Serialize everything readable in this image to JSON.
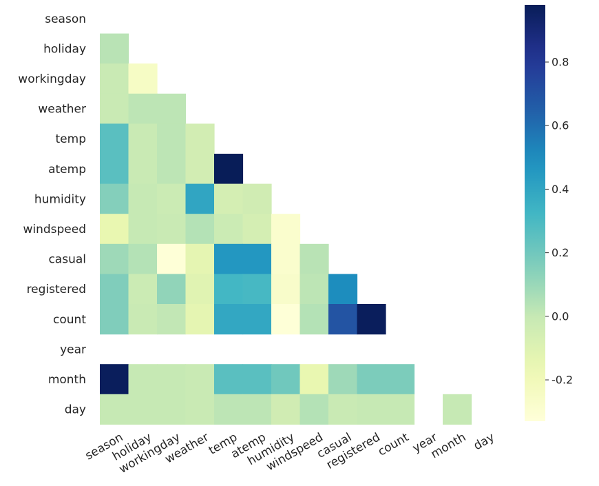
{
  "chart_data": {
    "type": "heatmap",
    "title": "",
    "variables": [
      "season",
      "holiday",
      "workingday",
      "weather",
      "temp",
      "atemp",
      "humidity",
      "windspeed",
      "casual",
      "registered",
      "count",
      "year",
      "month",
      "day"
    ],
    "mask": "upper-triangle",
    "matrix": [
      [
        null,
        null,
        null,
        null,
        null,
        null,
        null,
        null,
        null,
        null,
        null,
        null,
        null,
        null
      ],
      [
        0.03,
        null,
        null,
        null,
        null,
        null,
        null,
        null,
        null,
        null,
        null,
        null,
        null,
        null
      ],
      [
        -0.01,
        -0.25,
        null,
        null,
        null,
        null,
        null,
        null,
        null,
        null,
        null,
        null,
        null,
        null
      ],
      [
        -0.01,
        0.02,
        0.02,
        null,
        null,
        null,
        null,
        null,
        null,
        null,
        null,
        null,
        null,
        null
      ],
      [
        0.26,
        -0.01,
        0.02,
        -0.05,
        null,
        null,
        null,
        null,
        null,
        null,
        null,
        null,
        null,
        null
      ],
      [
        0.26,
        -0.01,
        0.02,
        -0.05,
        0.98,
        null,
        null,
        null,
        null,
        null,
        null,
        null,
        null,
        null
      ],
      [
        0.15,
        -0.0,
        -0.02,
        0.4,
        -0.06,
        -0.04,
        null,
        null,
        null,
        null,
        null,
        null,
        null,
        null
      ],
      [
        -0.15,
        0.0,
        -0.01,
        0.04,
        -0.02,
        -0.06,
        -0.28,
        null,
        null,
        null,
        null,
        null,
        null,
        null
      ],
      [
        0.09,
        0.04,
        -0.32,
        -0.13,
        0.46,
        0.46,
        -0.28,
        0.03,
        null,
        null,
        null,
        null,
        null,
        null
      ],
      [
        0.16,
        -0.02,
        0.12,
        -0.11,
        0.32,
        0.31,
        -0.27,
        0.02,
        0.5,
        null,
        null,
        null,
        null,
        null
      ],
      [
        0.16,
        -0.01,
        0.01,
        -0.13,
        0.39,
        0.39,
        -0.32,
        0.04,
        0.69,
        0.97,
        null,
        null,
        null,
        null
      ],
      [
        null,
        null,
        null,
        null,
        null,
        null,
        null,
        null,
        null,
        null,
        null,
        null,
        null,
        null
      ],
      [
        0.97,
        0.0,
        -0.0,
        -0.01,
        0.26,
        0.26,
        0.2,
        -0.15,
        0.09,
        0.17,
        0.17,
        null,
        null,
        null
      ],
      [
        -0.0,
        -0.0,
        -0.0,
        -0.01,
        0.02,
        0.02,
        -0.04,
        0.04,
        -0.01,
        0.0,
        0.0,
        null,
        -0.0,
        null
      ]
    ],
    "colormap": "YlGnBu",
    "vmin": -0.33,
    "vmax": 0.98,
    "colorbar_ticks": [
      0.8,
      0.6,
      0.4,
      0.2,
      0.0,
      -0.2
    ],
    "colorbar_tick_labels": [
      "0.8",
      "0.6",
      "0.4",
      "0.2",
      "0.0",
      "-0.2"
    ],
    "xlabel": "",
    "ylabel": "",
    "xtick_rotation": "30 degrees"
  }
}
